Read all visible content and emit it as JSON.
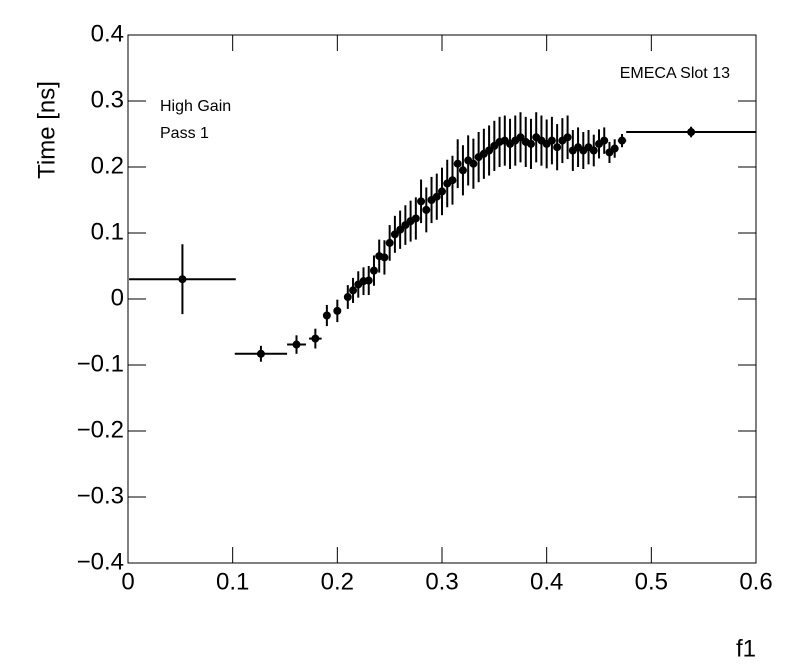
{
  "chart_data": {
    "type": "errorbar",
    "xlabel": "f1",
    "ylabel": "Time [ns]",
    "annotations": [
      "EMECA Slot 13",
      "High Gain",
      "Pass 1"
    ],
    "xlim": [
      0,
      0.6
    ],
    "ylim": [
      -0.4,
      0.4
    ],
    "xticks": [
      0,
      0.1,
      0.2,
      0.3,
      0.4,
      0.5,
      0.6
    ],
    "yticks": [
      {
        "value": -0.4,
        "label": "−0.4"
      },
      {
        "value": -0.3,
        "label": "−0.3"
      },
      {
        "value": -0.2,
        "label": "−0.2"
      },
      {
        "value": -0.1,
        "label": "−0.1"
      },
      0,
      0.1,
      0.2,
      0.3,
      0.4
    ],
    "color": "#000000",
    "x": [
      0.052,
      0.127,
      0.161,
      0.179,
      0.19,
      0.2,
      0.21,
      0.215,
      0.22,
      0.225,
      0.23,
      0.235,
      0.24,
      0.245,
      0.25,
      0.255,
      0.26,
      0.265,
      0.27,
      0.275,
      0.28,
      0.285,
      0.29,
      0.295,
      0.3,
      0.305,
      0.31,
      0.315,
      0.32,
      0.325,
      0.33,
      0.335,
      0.34,
      0.345,
      0.35,
      0.355,
      0.36,
      0.365,
      0.37,
      0.375,
      0.38,
      0.385,
      0.39,
      0.395,
      0.4,
      0.405,
      0.41,
      0.415,
      0.42,
      0.425,
      0.43,
      0.435,
      0.44,
      0.445,
      0.45,
      0.455,
      0.46,
      0.465,
      0.472,
      0.538
    ],
    "xerr": [
      0.051,
      0.025,
      0.009,
      0.006,
      0.0025,
      0.0025,
      0.0025,
      0.0025,
      0.0025,
      0.0025,
      0.0025,
      0.0025,
      0.0025,
      0.0025,
      0.0025,
      0.0025,
      0.0025,
      0.0025,
      0.0025,
      0.0025,
      0.0025,
      0.0025,
      0.0025,
      0.0025,
      0.0025,
      0.0025,
      0.0025,
      0.0025,
      0.0025,
      0.0025,
      0.0025,
      0.0025,
      0.0025,
      0.0025,
      0.0025,
      0.0025,
      0.0025,
      0.0025,
      0.0025,
      0.0025,
      0.0025,
      0.0025,
      0.0025,
      0.0025,
      0.0025,
      0.0025,
      0.0025,
      0.0025,
      0.0025,
      0.0025,
      0.0025,
      0.0025,
      0.0025,
      0.0025,
      0.0025,
      0.0025,
      0.0025,
      0.0025,
      0.004,
      0.062
    ],
    "y": [
      0.03,
      -0.083,
      -0.069,
      -0.06,
      -0.025,
      -0.018,
      0.003,
      0.013,
      0.022,
      0.027,
      0.028,
      0.043,
      0.065,
      0.063,
      0.085,
      0.098,
      0.105,
      0.112,
      0.118,
      0.122,
      0.148,
      0.135,
      0.15,
      0.155,
      0.163,
      0.175,
      0.18,
      0.205,
      0.195,
      0.21,
      0.205,
      0.215,
      0.22,
      0.225,
      0.232,
      0.238,
      0.24,
      0.235,
      0.24,
      0.245,
      0.238,
      0.235,
      0.245,
      0.24,
      0.235,
      0.24,
      0.23,
      0.24,
      0.245,
      0.225,
      0.23,
      0.225,
      0.23,
      0.225,
      0.235,
      0.24,
      0.222,
      0.228,
      0.24,
      0.253
    ],
    "yerr": [
      0.053,
      0.012,
      0.014,
      0.015,
      0.016,
      0.017,
      0.018,
      0.019,
      0.02,
      0.021,
      0.022,
      0.023,
      0.025,
      0.026,
      0.027,
      0.028,
      0.029,
      0.03,
      0.031,
      0.032,
      0.033,
      0.034,
      0.035,
      0.035,
      0.036,
      0.036,
      0.037,
      0.037,
      0.038,
      0.038,
      0.038,
      0.038,
      0.038,
      0.038,
      0.038,
      0.038,
      0.038,
      0.038,
      0.038,
      0.038,
      0.038,
      0.038,
      0.038,
      0.038,
      0.037,
      0.036,
      0.035,
      0.034,
      0.033,
      0.031,
      0.03,
      0.028,
      0.026,
      0.024,
      0.022,
      0.02,
      0.016,
      0.014,
      0.01,
      0.008
    ]
  }
}
